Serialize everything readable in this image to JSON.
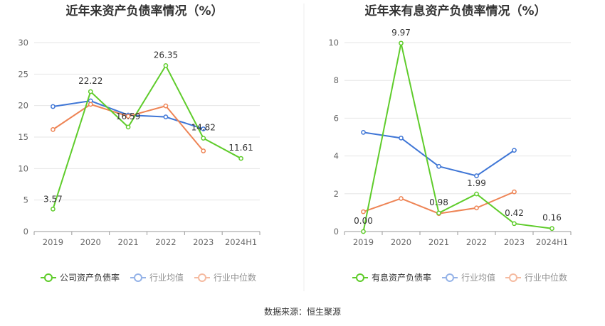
{
  "chart_data": [
    {
      "type": "line",
      "title": "近年来资产负债率情况（%）",
      "categories": [
        "2019",
        "2020",
        "2021",
        "2022",
        "2023",
        "2024H1"
      ],
      "ylim": [
        0,
        30
      ],
      "yticks": [
        0,
        5,
        10,
        15,
        20,
        25,
        30
      ],
      "series": [
        {
          "name": "公司资产负债率",
          "color": "#5fcc2b",
          "values": [
            3.57,
            22.22,
            16.59,
            26.35,
            14.82,
            11.61
          ]
        },
        {
          "name": "行业均值",
          "color": "#3f76d6",
          "values": [
            19.85,
            20.75,
            18.5,
            18.2,
            16.3,
            null
          ]
        },
        {
          "name": "行业中位数",
          "color": "#ee8455",
          "values": [
            16.2,
            20.2,
            18.3,
            19.95,
            12.8,
            null
          ]
        }
      ],
      "data_labels": [
        "3.57",
        "22.22",
        "16.59",
        "26.35",
        "14.82",
        "11.61"
      ]
    },
    {
      "type": "line",
      "title": "近年来有息资产负债率情况（%）",
      "categories": [
        "2019",
        "2020",
        "2021",
        "2022",
        "2023",
        "2024H1"
      ],
      "ylim": [
        0,
        10
      ],
      "yticks": [
        0,
        2,
        4,
        6,
        8,
        10
      ],
      "series": [
        {
          "name": "有息资产负债率",
          "color": "#5fcc2b",
          "values": [
            0.0,
            9.97,
            0.98,
            1.99,
            0.42,
            0.16
          ]
        },
        {
          "name": "行业均值",
          "color": "#3f76d6",
          "values": [
            5.25,
            4.95,
            3.45,
            2.95,
            4.3,
            null
          ]
        },
        {
          "name": "行业中位数",
          "color": "#ee8455",
          "values": [
            1.05,
            1.75,
            0.95,
            1.25,
            2.1,
            null
          ]
        }
      ],
      "data_labels": [
        "0.00",
        "9.97",
        "0.98",
        "1.99",
        "0.42",
        "0.16"
      ]
    }
  ],
  "source": "数据来源：恒生聚源"
}
